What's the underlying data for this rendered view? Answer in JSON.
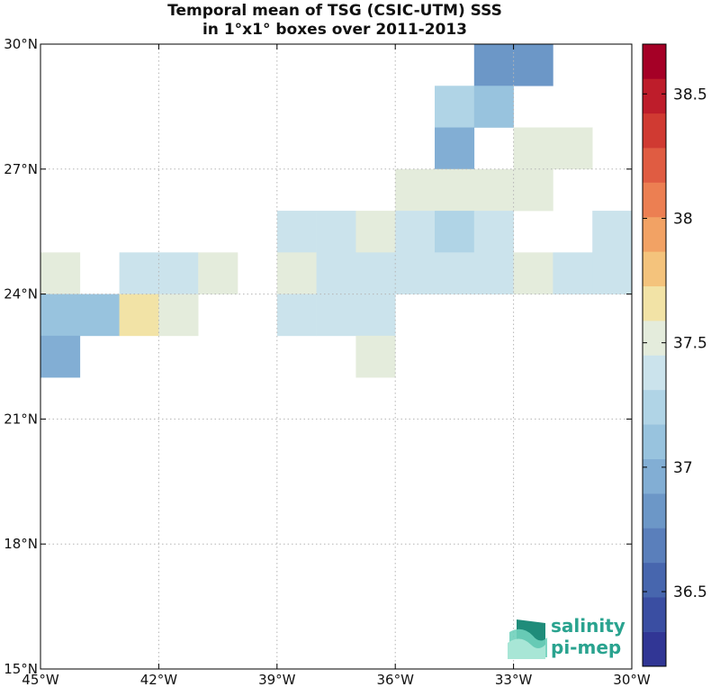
{
  "chart_data": {
    "type": "heatmap",
    "title_line1": "Temporal mean of TSG (CSIC-UTM) SSS",
    "title_line2": "in 1°x1° boxes over 2011-2013",
    "xlim": [
      -45,
      -30
    ],
    "ylim": [
      15,
      30
    ],
    "x_ticks": [
      -45,
      -42,
      -39,
      -36,
      -33,
      -30
    ],
    "x_tick_labels": [
      "45°W",
      "42°W",
      "39°W",
      "36°W",
      "33°W",
      "30°W"
    ],
    "y_ticks": [
      15,
      18,
      21,
      24,
      27,
      30
    ],
    "y_tick_labels": [
      "15°N",
      "18°N",
      "21°N",
      "24°N",
      "27°N",
      "30°N"
    ],
    "grid": true,
    "colorbar": {
      "vmin": 36.2,
      "vmax": 38.7,
      "ticks": [
        36.5,
        37,
        37.5,
        38,
        38.5
      ],
      "tick_labels": [
        "36.5",
        "37",
        "37.5",
        "38",
        "38.5"
      ],
      "colors": [
        "#313695",
        "#3a4ea2",
        "#4766ae",
        "#5a7fbb",
        "#6c97c7",
        "#82aed4",
        "#98c3de",
        "#b0d4e6",
        "#cbe3ec",
        "#e4ecdc",
        "#f2e3a6",
        "#f4c37c",
        "#f2a264",
        "#ec7f52",
        "#e05c42",
        "#d03a32",
        "#be1d2b",
        "#a50026"
      ]
    },
    "cells": [
      {
        "lon": -34,
        "lat": 29,
        "value": 36.8
      },
      {
        "lon": -33,
        "lat": 29,
        "value": 36.8
      },
      {
        "lon": -35,
        "lat": 28,
        "value": 37.2
      },
      {
        "lon": -34,
        "lat": 28,
        "value": 37.1
      },
      {
        "lon": -35,
        "lat": 27,
        "value": 37.0
      },
      {
        "lon": -33,
        "lat": 27,
        "value": 37.5
      },
      {
        "lon": -32,
        "lat": 27,
        "value": 37.5
      },
      {
        "lon": -36,
        "lat": 26,
        "value": 37.5
      },
      {
        "lon": -35,
        "lat": 26,
        "value": 37.5
      },
      {
        "lon": -34,
        "lat": 26,
        "value": 37.5
      },
      {
        "lon": -33,
        "lat": 26,
        "value": 37.5
      },
      {
        "lon": -39,
        "lat": 25,
        "value": 37.35
      },
      {
        "lon": -38,
        "lat": 25,
        "value": 37.35
      },
      {
        "lon": -37,
        "lat": 25,
        "value": 37.5
      },
      {
        "lon": -36,
        "lat": 25,
        "value": 37.35
      },
      {
        "lon": -35,
        "lat": 25,
        "value": 37.2
      },
      {
        "lon": -34,
        "lat": 25,
        "value": 37.35
      },
      {
        "lon": -31,
        "lat": 25,
        "value": 37.35
      },
      {
        "lon": -45,
        "lat": 24,
        "value": 37.5
      },
      {
        "lon": -43,
        "lat": 24,
        "value": 37.35
      },
      {
        "lon": -42,
        "lat": 24,
        "value": 37.35
      },
      {
        "lon": -41,
        "lat": 24,
        "value": 37.5
      },
      {
        "lon": -39,
        "lat": 24,
        "value": 37.5
      },
      {
        "lon": -38,
        "lat": 24,
        "value": 37.35
      },
      {
        "lon": -37,
        "lat": 24,
        "value": 37.35
      },
      {
        "lon": -36,
        "lat": 24,
        "value": 37.35
      },
      {
        "lon": -35,
        "lat": 24,
        "value": 37.35
      },
      {
        "lon": -34,
        "lat": 24,
        "value": 37.35
      },
      {
        "lon": -33,
        "lat": 24,
        "value": 37.5
      },
      {
        "lon": -32,
        "lat": 24,
        "value": 37.35
      },
      {
        "lon": -31,
        "lat": 24,
        "value": 37.35
      },
      {
        "lon": -45,
        "lat": 23,
        "value": 37.1
      },
      {
        "lon": -44,
        "lat": 23,
        "value": 37.1
      },
      {
        "lon": -43,
        "lat": 23,
        "value": 37.65
      },
      {
        "lon": -42,
        "lat": 23,
        "value": 37.5
      },
      {
        "lon": -39,
        "lat": 23,
        "value": 37.35
      },
      {
        "lon": -38,
        "lat": 23,
        "value": 37.35
      },
      {
        "lon": -37,
        "lat": 23,
        "value": 37.35
      },
      {
        "lon": -45,
        "lat": 22,
        "value": 37.0
      },
      {
        "lon": -37,
        "lat": 22,
        "value": 37.5
      }
    ]
  },
  "logo": {
    "line1": "salinity",
    "line2": "pi-mep",
    "color": "#2aa38f"
  }
}
